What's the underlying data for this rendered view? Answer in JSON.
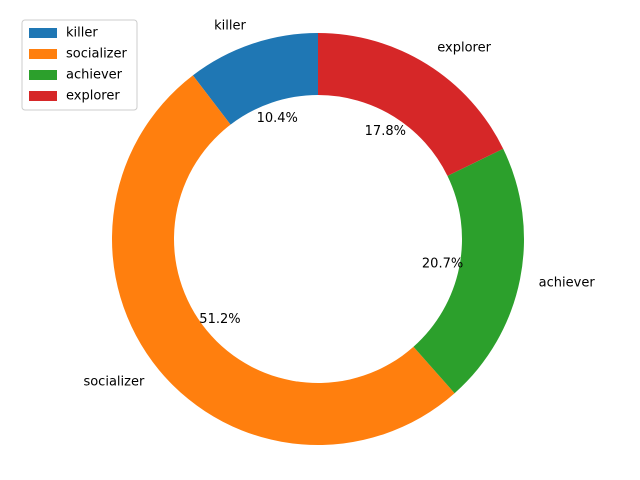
{
  "chart_data": {
    "type": "pie",
    "donut": true,
    "start_angle_deg": 90,
    "direction": "counterclockwise",
    "slices": [
      {
        "label": "killer",
        "value": 10.4,
        "pct_label": "10.4%",
        "color": "#1f77b4"
      },
      {
        "label": "socializer",
        "value": 51.2,
        "pct_label": "51.2%",
        "color": "#ff7f0e"
      },
      {
        "label": "achiever",
        "value": 20.7,
        "pct_label": "20.7%",
        "color": "#2ca02c"
      },
      {
        "label": "explorer",
        "value": 17.8,
        "pct_label": "17.8%",
        "color": "#d62728"
      }
    ],
    "legend": {
      "placement": "top-left",
      "entries": [
        "killer",
        "socializer",
        "achiever",
        "explorer"
      ]
    }
  }
}
